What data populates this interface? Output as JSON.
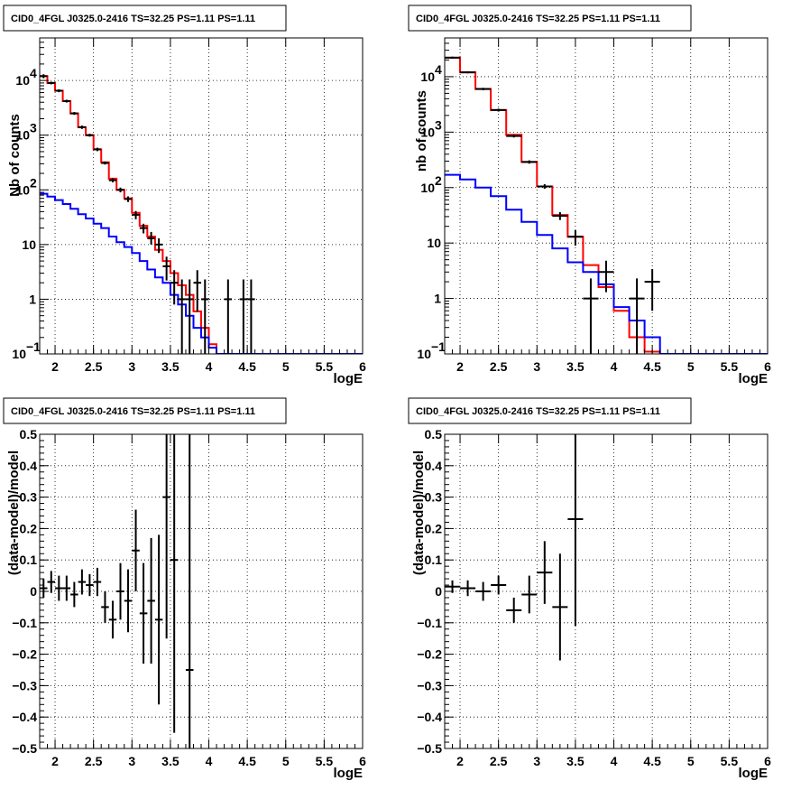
{
  "chart_data": [
    {
      "type": "line",
      "title": "CID0_4FGL J0325.0-2416 TS=32.25 PS=1.11 PS=1.11",
      "xlabel": "logE",
      "ylabel": "Nb of counts",
      "y_scale": "log",
      "xlim": [
        1.8,
        6.0
      ],
      "ylim": [
        0.1,
        60000
      ],
      "grid": true,
      "x_ticks": [
        "2",
        "2.5",
        "3",
        "3.5",
        "4",
        "4.5",
        "5",
        "5.5",
        "6"
      ],
      "y_ticks": [
        {
          "v": 0.1,
          "t": "10",
          "sup": "−1"
        },
        {
          "v": 1,
          "t": "1",
          "sup": ""
        },
        {
          "v": 10,
          "t": "10",
          "sup": ""
        },
        {
          "v": 100,
          "t": "10",
          "sup": "2"
        },
        {
          "v": 1000,
          "t": "10",
          "sup": "3"
        },
        {
          "v": 10000,
          "t": "10",
          "sup": "4"
        }
      ],
      "bin_edges": [
        1.8,
        1.9,
        2.0,
        2.1,
        2.2,
        2.3,
        2.4,
        2.5,
        2.6,
        2.7,
        2.8,
        2.9,
        3.0,
        3.1,
        3.2,
        3.3,
        3.4,
        3.5,
        3.6,
        3.7,
        3.8,
        3.9,
        4.0,
        4.1,
        4.2,
        4.3,
        4.4,
        4.5,
        4.6,
        4.7,
        4.8,
        4.9,
        5.0,
        5.1,
        5.2,
        5.3,
        5.4,
        5.5,
        5.6,
        5.7,
        5.8,
        5.9,
        6.0
      ],
      "series": [
        {
          "color": "#ff0000",
          "values": [
            12000,
            9000,
            6500,
            4200,
            2500,
            1400,
            1000,
            550,
            320,
            160,
            100,
            70,
            38,
            22,
            14,
            8,
            5,
            3,
            1.8,
            1.2,
            0.6,
            0.3,
            0.15,
            0.08,
            0.07,
            0.07,
            0.07,
            0.07,
            0.07,
            0.07,
            0.07,
            0.07,
            0.07,
            0.07,
            0.07,
            0.07,
            0.07,
            0.07,
            0.07,
            0.07,
            0.07,
            0.07
          ]
        },
        {
          "color": "#0000ff",
          "values": [
            85,
            75,
            65,
            55,
            45,
            36,
            30,
            24,
            20,
            14,
            11,
            9,
            7,
            5,
            3.5,
            2.5,
            2,
            1.2,
            0.8,
            0.5,
            0.3,
            0.2,
            0.13,
            0.1,
            0.1,
            0.1,
            0.1,
            0.1,
            0.1,
            0.1,
            0.1,
            0.1,
            0.1,
            0.1,
            0.1,
            0.1,
            0.1,
            0.1,
            0.1,
            0.1,
            0.1,
            0.1
          ]
        }
      ],
      "points": [
        {
          "x": 1.85,
          "y": 12000,
          "lo": 11000,
          "hi": 13000
        },
        {
          "x": 1.95,
          "y": 9000,
          "lo": 8500,
          "hi": 9500
        },
        {
          "x": 2.05,
          "y": 6500,
          "lo": 6100,
          "hi": 6900
        },
        {
          "x": 2.15,
          "y": 4200,
          "lo": 3950,
          "hi": 4450
        },
        {
          "x": 2.25,
          "y": 2500,
          "lo": 2350,
          "hi": 2650
        },
        {
          "x": 2.35,
          "y": 1400,
          "lo": 1300,
          "hi": 1500
        },
        {
          "x": 2.45,
          "y": 1000,
          "lo": 940,
          "hi": 1060
        },
        {
          "x": 2.55,
          "y": 550,
          "lo": 510,
          "hi": 590
        },
        {
          "x": 2.65,
          "y": 310,
          "lo": 290,
          "hi": 330
        },
        {
          "x": 2.75,
          "y": 150,
          "lo": 137,
          "hi": 163
        },
        {
          "x": 2.85,
          "y": 100,
          "lo": 90,
          "hi": 110
        },
        {
          "x": 2.95,
          "y": 68,
          "lo": 60,
          "hi": 76
        },
        {
          "x": 3.05,
          "y": 35,
          "lo": 29,
          "hi": 41
        },
        {
          "x": 3.15,
          "y": 20,
          "lo": 16,
          "hi": 24
        },
        {
          "x": 3.25,
          "y": 13,
          "lo": 10,
          "hi": 17
        },
        {
          "x": 3.35,
          "y": 10,
          "lo": 7,
          "hi": 13
        },
        {
          "x": 3.45,
          "y": 4,
          "lo": 2.2,
          "hi": 6
        },
        {
          "x": 3.55,
          "y": 2,
          "lo": 0.8,
          "hi": 3.4
        },
        {
          "x": 3.65,
          "y": 1,
          "lo": 0.1,
          "hi": 2.3
        },
        {
          "x": 3.75,
          "y": 1,
          "lo": 0.1,
          "hi": 2.3
        },
        {
          "x": 3.85,
          "y": 2,
          "lo": 0.6,
          "hi": 3.4
        },
        {
          "x": 3.95,
          "y": 1,
          "lo": 0.1,
          "hi": 2.3
        },
        {
          "x": 4.25,
          "y": 1,
          "lo": 0.1,
          "hi": 2.3
        },
        {
          "x": 4.45,
          "y": 1,
          "lo": 0.1,
          "hi": 2.3
        },
        {
          "x": 4.55,
          "y": 1,
          "lo": 0.1,
          "hi": 2.3
        }
      ]
    },
    {
      "type": "line",
      "title": "CID0_4FGL J0325.0-2416 TS=32.25 PS=1.11 PS=1.11",
      "xlabel": "logE",
      "ylabel": "nb of counts",
      "y_scale": "log",
      "xlim": [
        1.8,
        6.0
      ],
      "ylim": [
        0.1,
        50000
      ],
      "grid": true,
      "x_ticks": [
        "2",
        "2.5",
        "3",
        "3.5",
        "4",
        "4.5",
        "5",
        "5.5",
        "6"
      ],
      "y_ticks": [
        {
          "v": 0.1,
          "t": "10",
          "sup": "−1"
        },
        {
          "v": 1,
          "t": "1",
          "sup": ""
        },
        {
          "v": 10,
          "t": "10",
          "sup": ""
        },
        {
          "v": 100,
          "t": "10",
          "sup": "2"
        },
        {
          "v": 1000,
          "t": "10",
          "sup": "3"
        },
        {
          "v": 10000,
          "t": "10",
          "sup": "4"
        }
      ],
      "bin_edges": [
        1.8,
        2.0,
        2.2,
        2.4,
        2.6,
        2.8,
        3.0,
        3.2,
        3.4,
        3.6,
        3.8,
        4.0,
        4.2,
        4.4,
        4.6,
        4.8,
        5.0,
        5.2,
        5.4,
        5.6,
        5.8,
        6.0
      ],
      "series": [
        {
          "color": "#ff0000",
          "values": [
            22000,
            12000,
            6000,
            2500,
            900,
            290,
            105,
            32,
            13,
            4,
            1.6,
            0.6,
            0.2,
            0.11,
            0.1,
            0.1,
            0.1,
            0.1,
            0.1,
            0.1,
            0.1
          ]
        },
        {
          "color": "#0000ff",
          "values": [
            170,
            140,
            100,
            70,
            40,
            24,
            14,
            8,
            4.5,
            3,
            1.8,
            0.7,
            0.4,
            0.2,
            0.1,
            0.1,
            0.1,
            0.1,
            0.1,
            0.1,
            0.1
          ]
        }
      ],
      "points": [
        {
          "x": 1.9,
          "y": 22000,
          "lo": 21000,
          "hi": 23000
        },
        {
          "x": 2.1,
          "y": 12000,
          "lo": 11500,
          "hi": 12500
        },
        {
          "x": 2.3,
          "y": 6000,
          "lo": 5700,
          "hi": 6300
        },
        {
          "x": 2.5,
          "y": 2500,
          "lo": 2350,
          "hi": 2650
        },
        {
          "x": 2.7,
          "y": 850,
          "lo": 800,
          "hi": 900
        },
        {
          "x": 2.9,
          "y": 290,
          "lo": 270,
          "hi": 310
        },
        {
          "x": 3.1,
          "y": 105,
          "lo": 95,
          "hi": 115
        },
        {
          "x": 3.3,
          "y": 31,
          "lo": 26,
          "hi": 36
        },
        {
          "x": 3.5,
          "y": 13,
          "lo": 9,
          "hi": 17
        },
        {
          "x": 3.7,
          "y": 1,
          "lo": 0.1,
          "hi": 2.3
        },
        {
          "x": 3.9,
          "y": 3,
          "lo": 1.3,
          "hi": 4.8
        },
        {
          "x": 4.3,
          "y": 1,
          "lo": 0.1,
          "hi": 2.3
        },
        {
          "x": 4.5,
          "y": 2,
          "lo": 0.6,
          "hi": 3.4
        }
      ]
    },
    {
      "type": "scatter",
      "title": "CID0_4FGL J0325.0-2416 TS=32.25 PS=1.11 PS=1.11",
      "xlabel": "logE",
      "ylabel": "(data-model)/model",
      "xlim": [
        1.8,
        6.0
      ],
      "ylim": [
        -0.5,
        0.5
      ],
      "grid": true,
      "x_ticks": [
        "2",
        "2.5",
        "3",
        "3.5",
        "4",
        "4.5",
        "5",
        "5.5",
        "6"
      ],
      "y_ticks": [
        "−0.5",
        "−0.4",
        "−0.3",
        "−0.2",
        "−0.1",
        "0",
        "0.1",
        "0.2",
        "0.3",
        "0.4",
        "0.5"
      ],
      "points": [
        {
          "x": 1.85,
          "y": 0.01,
          "e": 0.03
        },
        {
          "x": 1.95,
          "y": 0.03,
          "e": 0.035
        },
        {
          "x": 2.05,
          "y": 0.01,
          "e": 0.04
        },
        {
          "x": 2.15,
          "y": 0.01,
          "e": 0.04
        },
        {
          "x": 2.25,
          "y": -0.01,
          "e": 0.04
        },
        {
          "x": 2.35,
          "y": 0.03,
          "e": 0.04
        },
        {
          "x": 2.45,
          "y": 0.02,
          "e": 0.035
        },
        {
          "x": 2.55,
          "y": 0.03,
          "e": 0.045
        },
        {
          "x": 2.65,
          "y": -0.05,
          "e": 0.05
        },
        {
          "x": 2.75,
          "y": -0.09,
          "e": 0.06
        },
        {
          "x": 2.85,
          "y": 0.0,
          "e": 0.09
        },
        {
          "x": 2.95,
          "y": -0.03,
          "e": 0.1
        },
        {
          "x": 3.05,
          "y": 0.13,
          "e": 0.13
        },
        {
          "x": 3.15,
          "y": -0.07,
          "e": 0.16
        },
        {
          "x": 3.25,
          "y": -0.03,
          "e": 0.2
        },
        {
          "x": 3.35,
          "y": -0.09,
          "e": 0.27
        },
        {
          "x": 3.45,
          "y": 0.3,
          "e": 0.45
        },
        {
          "x": 3.55,
          "y": 0.1,
          "e": 0.55
        },
        {
          "x": 3.75,
          "y": -0.25,
          "e": 0.9
        }
      ]
    },
    {
      "type": "scatter",
      "title": "CID0_4FGL J0325.0-2416 TS=32.25 PS=1.11 PS=1.11",
      "xlabel": "logE",
      "ylabel": "(data-model)/model",
      "xlim": [
        1.8,
        6.0
      ],
      "ylim": [
        -0.5,
        0.5
      ],
      "grid": true,
      "x_ticks": [
        "2",
        "2.5",
        "3",
        "3.5",
        "4",
        "4.5",
        "5",
        "5.5",
        "6"
      ],
      "y_ticks": [
        "−0.5",
        "−0.4",
        "−0.3",
        "−0.2",
        "−0.1",
        "0",
        "0.1",
        "0.2",
        "0.3",
        "0.4",
        "0.5"
      ],
      "points": [
        {
          "x": 1.9,
          "y": 0.015,
          "e": 0.02
        },
        {
          "x": 2.1,
          "y": 0.01,
          "e": 0.025
        },
        {
          "x": 2.3,
          "y": 0.0,
          "e": 0.03
        },
        {
          "x": 2.5,
          "y": 0.02,
          "e": 0.03
        },
        {
          "x": 2.7,
          "y": -0.06,
          "e": 0.04
        },
        {
          "x": 2.9,
          "y": -0.01,
          "e": 0.06
        },
        {
          "x": 3.1,
          "y": 0.06,
          "e": 0.1
        },
        {
          "x": 3.3,
          "y": -0.05,
          "e": 0.17
        },
        {
          "x": 3.5,
          "y": 0.23,
          "e": 0.34
        }
      ]
    }
  ]
}
